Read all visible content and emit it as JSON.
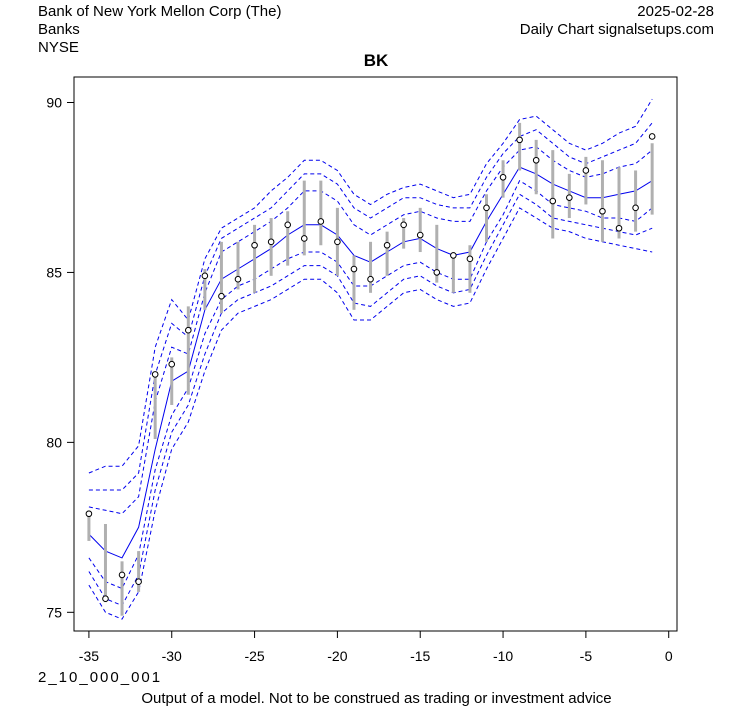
{
  "header": {
    "company": "Bank of New York Mellon Corp (The)",
    "sector": "Banks",
    "exchange": "NYSE",
    "date": "2025-02-28",
    "source": "Daily Chart signalsetups.com"
  },
  "footer": {
    "model_code": "2_10_000_001",
    "disclaimer": "Output of a model. Not to be construed as trading or investment advice"
  },
  "colors": {
    "bands": "#0000ee",
    "ranges": "#b0b0b0",
    "points": "#000000",
    "axis": "#000000"
  },
  "chart_data": {
    "type": "line",
    "title": "BK",
    "xlabel": "",
    "ylabel": "",
    "xlim": [
      -35.9,
      0.5
    ],
    "ylim": [
      74.45,
      90.75
    ],
    "x_ticks": [
      -35,
      -30,
      -25,
      -20,
      -15,
      -10,
      -5,
      0
    ],
    "y_ticks": [
      75,
      80,
      85,
      90
    ],
    "grid": false,
    "x": [
      -35,
      -34,
      -33,
      -32,
      -31,
      -30,
      -29,
      -28,
      -27,
      -26,
      -25,
      -24,
      -23,
      -22,
      -21,
      -20,
      -19,
      -18,
      -17,
      -16,
      -15,
      -14,
      -13,
      -12,
      -11,
      -10,
      -9,
      -8,
      -7,
      -6,
      -5,
      -4,
      -3,
      -2,
      -1
    ],
    "close": [
      77.9,
      75.4,
      76.1,
      75.9,
      82.0,
      82.3,
      83.3,
      84.9,
      84.3,
      84.8,
      85.8,
      85.9,
      86.4,
      86.0,
      86.5,
      85.9,
      85.1,
      84.8,
      85.8,
      86.4,
      86.1,
      85.0,
      85.5,
      85.4,
      86.9,
      87.8,
      88.9,
      88.3,
      87.1,
      87.2,
      88.0,
      86.8,
      86.3,
      86.9,
      89.0
    ],
    "high": [
      78.0,
      77.6,
      76.5,
      76.8,
      82.0,
      82.5,
      84.0,
      85.1,
      85.9,
      85.9,
      86.4,
      86.6,
      86.8,
      87.7,
      87.7,
      86.9,
      85.5,
      85.9,
      86.2,
      86.6,
      86.9,
      86.4,
      85.6,
      85.8,
      87.3,
      88.3,
      89.4,
      88.9,
      88.6,
      87.9,
      88.4,
      88.3,
      88.1,
      88.0,
      88.8
    ],
    "low": [
      77.1,
      75.3,
      74.9,
      75.6,
      80.1,
      81.1,
      81.4,
      83.9,
      83.8,
      84.5,
      84.4,
      84.9,
      85.2,
      85.5,
      85.8,
      84.9,
      83.9,
      84.4,
      84.9,
      85.7,
      85.6,
      84.7,
      84.4,
      84.4,
      85.9,
      87.2,
      88.0,
      87.3,
      86.0,
      86.6,
      87.0,
      85.9,
      86.0,
      86.2,
      86.7
    ],
    "series": [
      {
        "values": [
          79.1,
          79.3,
          79.3,
          79.9,
          82.8,
          84.2,
          83.6,
          85.4,
          86.3,
          86.6,
          86.9,
          87.4,
          87.8,
          88.3,
          88.3,
          88.0,
          87.3,
          87.0,
          87.3,
          87.5,
          87.6,
          87.4,
          87.2,
          87.3,
          88.2,
          88.8,
          89.5,
          89.6,
          89.2,
          88.8,
          88.6,
          88.8,
          89.1,
          89.3,
          90.1
        ]
      },
      {
        "values": [
          78.6,
          78.6,
          78.6,
          79.1,
          82.0,
          83.5,
          83.1,
          84.9,
          86.0,
          86.3,
          86.6,
          86.9,
          87.4,
          87.9,
          87.9,
          87.6,
          86.9,
          86.6,
          86.9,
          87.2,
          87.2,
          87.0,
          86.9,
          86.9,
          87.8,
          88.5,
          89.0,
          89.2,
          88.8,
          88.4,
          88.2,
          88.4,
          88.6,
          88.8,
          89.4
        ]
      },
      {
        "values": [
          78.1,
          78.0,
          77.9,
          78.4,
          81.2,
          82.8,
          82.6,
          84.4,
          85.6,
          85.9,
          86.2,
          86.5,
          86.9,
          87.4,
          87.4,
          87.1,
          86.4,
          86.1,
          86.4,
          86.7,
          86.8,
          86.6,
          86.5,
          86.5,
          87.4,
          88.1,
          88.6,
          88.7,
          88.3,
          88.0,
          87.8,
          87.9,
          88.1,
          88.2,
          88.6
        ]
      },
      {
        "values": [
          77.3,
          76.8,
          76.6,
          77.5,
          79.8,
          81.8,
          82.1,
          83.9,
          84.8,
          85.1,
          85.4,
          85.7,
          86.1,
          86.4,
          86.4,
          86.1,
          85.5,
          85.3,
          85.6,
          85.9,
          86.0,
          85.7,
          85.5,
          85.6,
          86.5,
          87.3,
          88.1,
          87.9,
          87.6,
          87.4,
          87.2,
          87.2,
          87.3,
          87.4,
          87.7
        ]
      },
      {
        "values": [
          76.6,
          75.9,
          75.7,
          76.7,
          79.2,
          80.8,
          81.6,
          83.2,
          84.2,
          84.6,
          84.8,
          85.1,
          85.4,
          85.6,
          85.6,
          85.3,
          84.6,
          84.6,
          84.9,
          85.2,
          85.3,
          85.0,
          84.8,
          84.8,
          85.9,
          86.7,
          87.7,
          87.4,
          87.0,
          86.9,
          86.8,
          86.6,
          86.6,
          86.5,
          86.9
        ]
      },
      {
        "values": [
          76.2,
          75.4,
          75.2,
          76.1,
          78.6,
          80.3,
          81.1,
          82.6,
          83.8,
          84.2,
          84.4,
          84.6,
          84.9,
          85.2,
          85.2,
          84.9,
          84.1,
          84.0,
          84.4,
          84.8,
          84.9,
          84.6,
          84.4,
          84.5,
          85.5,
          86.4,
          87.3,
          87.0,
          86.6,
          86.5,
          86.4,
          86.3,
          86.2,
          86.1,
          86.3
        ]
      },
      {
        "values": [
          75.8,
          75.0,
          74.8,
          75.6,
          78.0,
          79.8,
          80.6,
          82.1,
          83.3,
          83.8,
          84.0,
          84.2,
          84.5,
          84.8,
          84.8,
          84.4,
          83.6,
          83.6,
          84.0,
          84.4,
          84.5,
          84.2,
          84.0,
          84.1,
          85.1,
          86.0,
          86.9,
          86.6,
          86.3,
          86.2,
          86.0,
          85.9,
          85.8,
          85.7,
          85.6
        ]
      }
    ]
  }
}
